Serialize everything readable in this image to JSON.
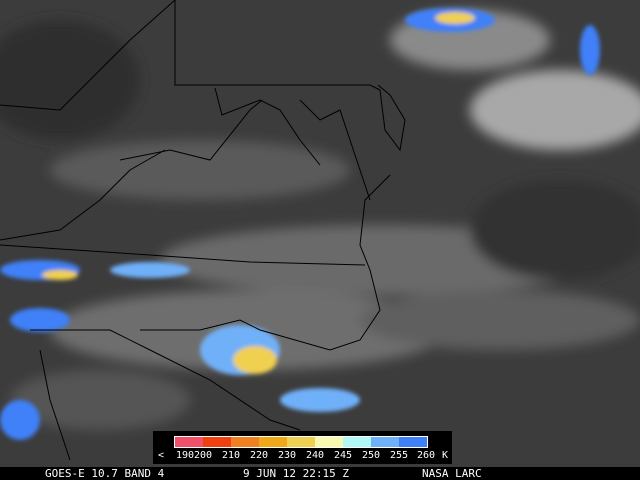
{
  "caption": {
    "satellite": "GOES-E 10.7 BAND 4",
    "datetime": "9 JUN 12 22:15 Z",
    "credit": "NASA LARC"
  },
  "legend": {
    "less_than": "<",
    "unit": "K",
    "labels": [
      "190",
      "200",
      "210",
      "220",
      "230",
      "240",
      "245",
      "250",
      "255",
      "260"
    ],
    "colors": [
      "#f05068",
      "#f04010",
      "#f08020",
      "#f0a818",
      "#f0d050",
      "#f8f8b0",
      "#b0f8f8",
      "#70b0f8",
      "#4080f8"
    ]
  }
}
